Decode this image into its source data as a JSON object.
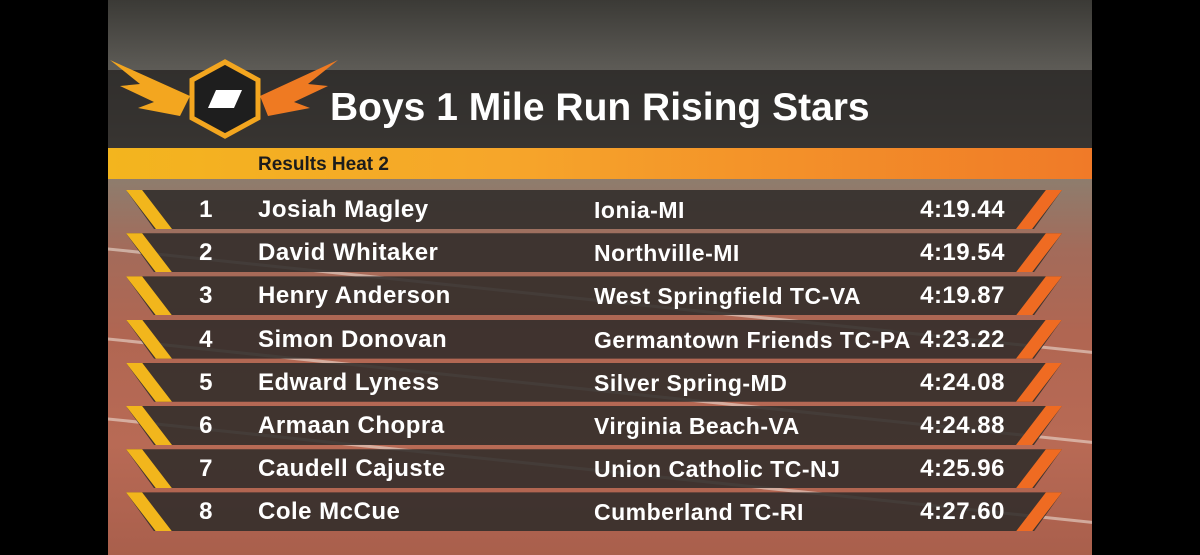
{
  "header": {
    "title": "Boys 1 Mile Run Rising Stars",
    "subtitle": "Results Heat 2"
  },
  "table": {
    "rows": [
      {
        "place": 1,
        "name": "Josiah Magley",
        "team": "Ionia-MI",
        "time": "4:19.44"
      },
      {
        "place": 2,
        "name": "David Whitaker",
        "team": "Northville-MI",
        "time": "4:19.54"
      },
      {
        "place": 3,
        "name": "Henry Anderson",
        "team": "West Springfield TC-VA",
        "time": "4:19.87"
      },
      {
        "place": 4,
        "name": "Simon Donovan",
        "team": "Germantown Friends TC-PA",
        "time": "4:23.22"
      },
      {
        "place": 5,
        "name": "Edward Lyness",
        "team": "Silver Spring-MD",
        "time": "4:24.08"
      },
      {
        "place": 6,
        "name": "Armaan Chopra",
        "team": "Virginia Beach-VA",
        "time": "4:24.88"
      },
      {
        "place": 7,
        "name": "Caudell Cajuste",
        "team": "Union Catholic TC-NJ",
        "time": "4:25.96"
      },
      {
        "place": 8,
        "name": "Cole McCue",
        "team": "Cumberland TC-RI",
        "time": "4:27.60"
      }
    ]
  }
}
